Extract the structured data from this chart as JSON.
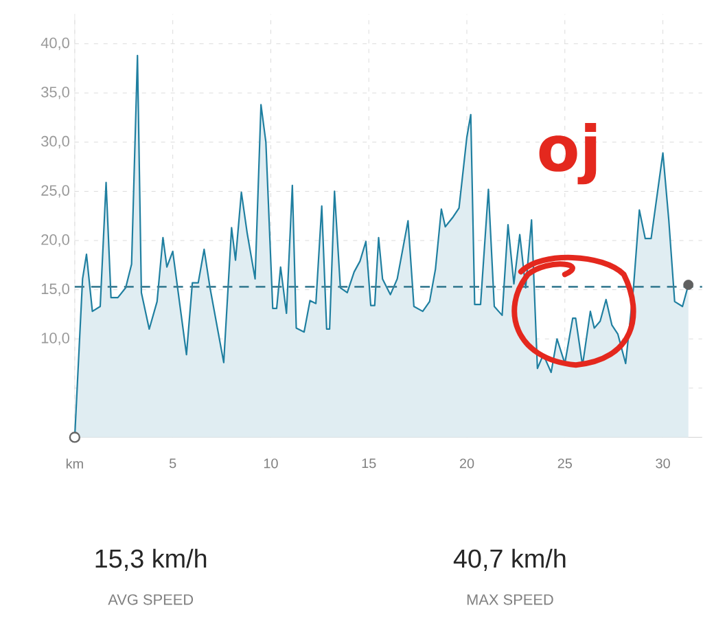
{
  "chart_data": {
    "type": "area",
    "x": [
      0,
      0.4,
      0.6,
      0.9,
      1.3,
      1.6,
      1.85,
      2.2,
      2.6,
      2.9,
      3.2,
      3.4,
      3.8,
      4.2,
      4.5,
      4.7,
      5.0,
      5.7,
      6.0,
      6.3,
      6.6,
      6.9,
      7.6,
      8.0,
      8.2,
      8.5,
      8.8,
      9.2,
      9.5,
      9.75,
      10.1,
      10.3,
      10.5,
      10.8,
      11.1,
      11.3,
      11.7,
      12.0,
      12.3,
      12.6,
      12.85,
      13.0,
      13.25,
      13.55,
      13.9,
      14.25,
      14.55,
      14.85,
      15.1,
      15.3,
      15.5,
      15.7,
      16.1,
      16.45,
      17.0,
      17.3,
      17.75,
      18.1,
      18.4,
      18.7,
      18.9,
      19.3,
      19.6,
      20.0,
      20.2,
      20.4,
      20.7,
      21.1,
      21.4,
      21.8,
      22.1,
      22.4,
      22.7,
      23.0,
      23.3,
      23.6,
      23.9,
      24.3,
      24.6,
      25.0,
      25.4,
      25.55,
      25.9,
      26.3,
      26.5,
      26.8,
      27.1,
      27.4,
      27.7,
      28.1,
      28.5,
      28.8,
      29.1,
      29.4,
      30.0,
      30.3,
      30.6,
      31.0,
      31.3
    ],
    "series": [
      {
        "color": "#1f7fa0",
        "values": [
          0,
          16.1,
          18.6,
          12.8,
          13.3,
          25.9,
          14.2,
          14.2,
          15.2,
          17.6,
          38.8,
          14.7,
          11.0,
          13.8,
          20.3,
          17.3,
          18.9,
          8.4,
          15.7,
          15.7,
          19.1,
          15.2,
          7.6,
          21.3,
          18.0,
          24.9,
          20.7,
          16.1,
          33.8,
          30.0,
          13.1,
          13.1,
          17.3,
          12.6,
          25.6,
          11.1,
          10.7,
          13.9,
          13.6,
          23.5,
          11.0,
          11.0,
          25.0,
          15.2,
          14.7,
          16.8,
          17.9,
          19.9,
          13.4,
          13.4,
          20.3,
          16.1,
          14.5,
          16.1,
          22.0,
          13.3,
          12.8,
          13.8,
          17.1,
          23.2,
          21.4,
          22.4,
          23.3,
          30.5,
          32.8,
          13.5,
          13.5,
          25.2,
          13.3,
          12.4,
          21.6,
          15.6,
          20.6,
          15.2,
          22.1,
          7.0,
          8.4,
          6.6,
          10.0,
          7.5,
          12.1,
          12.1,
          7.3,
          12.8,
          11.1,
          11.8,
          14.0,
          11.4,
          10.5,
          7.5,
          15.2,
          23.1,
          20.2,
          20.2,
          28.9,
          22.1,
          13.8,
          13.3,
          15.5
        ]
      }
    ],
    "xlim": [
      0,
      32
    ],
    "ylim": [
      0,
      43
    ],
    "xticks": [
      {
        "value": 0,
        "label": "km"
      },
      5,
      10,
      15,
      20,
      25,
      30
    ],
    "yticks": [
      {
        "value": 5,
        "label": null
      },
      {
        "value": 10,
        "label": "10,0"
      },
      {
        "value": 15,
        "label": "15,0"
      },
      {
        "value": 20,
        "label": "20,0"
      },
      {
        "value": 25,
        "label": "25,0"
      },
      {
        "value": 30,
        "label": "30,0"
      },
      {
        "value": 35,
        "label": "35,0"
      },
      {
        "value": 40,
        "label": "40,0"
      }
    ],
    "grid": true,
    "ref_lines": [
      {
        "axis": "y",
        "value": 15.3,
        "color": "#3d7f95",
        "line_style": "dashed"
      }
    ],
    "annotations": [
      "oj",
      "15,3 km/h",
      "AVG SPEED",
      "40,7 km/h",
      "MAX SPEED"
    ]
  }
}
